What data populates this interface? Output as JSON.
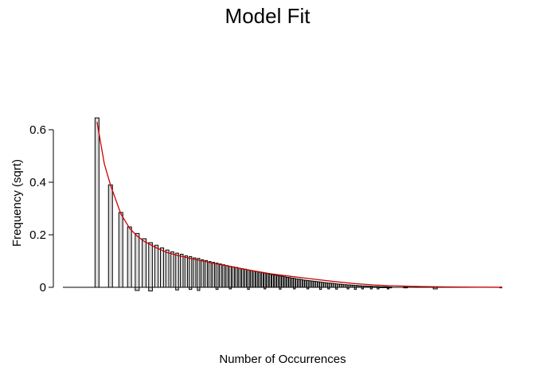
{
  "chart_data": {
    "type": "bar",
    "title": "Model Fit",
    "xlabel": "Number of Occurrences",
    "ylabel": "Frequency (sqrt)",
    "ylim": [
      0,
      0.65
    ],
    "yticks": [
      0,
      0.2,
      0.4,
      0.6
    ],
    "ytick_labels": [
      "0",
      "0.2",
      "0.4",
      "0.6"
    ],
    "xticks_shown": false,
    "grid": false,
    "x": [
      1,
      2,
      3,
      4,
      5,
      6,
      7,
      8,
      9,
      10,
      11,
      12,
      13,
      14,
      15,
      16,
      17,
      18,
      19,
      20,
      21,
      22,
      23,
      24,
      25,
      26,
      27,
      28,
      29,
      30,
      31,
      32,
      33,
      34,
      35,
      36,
      37,
      38,
      39,
      40,
      41,
      42,
      43,
      44,
      45,
      46,
      47,
      48,
      49,
      50,
      51,
      52,
      53,
      54,
      55,
      56,
      57,
      58,
      59,
      60,
      61,
      62,
      63,
      64,
      65,
      66,
      67,
      68,
      69,
      70,
      71,
      72,
      73,
      74,
      75,
      76,
      77,
      78,
      79,
      80,
      81,
      82,
      83,
      84,
      85,
      86,
      87,
      88,
      89,
      90,
      91,
      92,
      93,
      94,
      95,
      96,
      97,
      98,
      99,
      100,
      110,
      130,
      180
    ],
    "series": [
      {
        "kind": "bar",
        "values": [
          0.645,
          0.39,
          0.285,
          0.23,
          0.205,
          0.185,
          0.17,
          0.16,
          0.15,
          0.142,
          0.135,
          0.13,
          0.126,
          0.12,
          0.117,
          0.112,
          0.11,
          0.105,
          0.102,
          0.098,
          0.095,
          0.092,
          0.089,
          0.086,
          0.083,
          0.08,
          0.078,
          0.076,
          0.073,
          0.071,
          0.069,
          0.066,
          0.064,
          0.062,
          0.06,
          0.058,
          0.056,
          0.054,
          0.052,
          0.05,
          0.048,
          0.047,
          0.045,
          0.043,
          0.042,
          0.04,
          0.038,
          0.037,
          0.035,
          0.034,
          0.032,
          0.031,
          0.03,
          0.028,
          0.027,
          0.026,
          0.025,
          0.024,
          0.023,
          0.022,
          0.021,
          0.02,
          0.019,
          0.018,
          0.017,
          0.016,
          0.016,
          0.015,
          0.014,
          0.013,
          0.012,
          0.012,
          0.011,
          0.01,
          0.01,
          0.009,
          0.009,
          0.008,
          0.008,
          0.007,
          0.007,
          0.006,
          0.006,
          0.005,
          0.005,
          0.005,
          0.004,
          0.004,
          0.004,
          0.003,
          0.003,
          0.003,
          0.003,
          0.002,
          0.002,
          0.002,
          0.002,
          0.002,
          0.001,
          0.001,
          0.001,
          0.001,
          0.001
        ],
        "bottoms": [
          0.0,
          0.0,
          0.0,
          0.0,
          -0.012,
          0.0,
          -0.014,
          0.0,
          0.0,
          0.0,
          0.0,
          -0.01,
          0.0,
          0.0,
          -0.008,
          0.0,
          -0.012,
          0.0,
          0.0,
          0.0,
          0.0,
          -0.008,
          0.0,
          0.0,
          0.0,
          -0.006,
          0.0,
          0.0,
          0.0,
          0.0,
          0.0,
          -0.008,
          0.0,
          0.0,
          0.0,
          0.0,
          0.0,
          -0.006,
          0.0,
          0.0,
          0.0,
          0.0,
          0.0,
          -0.007,
          0.0,
          0.0,
          0.0,
          0.0,
          0.0,
          -0.006,
          0.0,
          0.0,
          0.0,
          0.0,
          0.0,
          -0.006,
          0.0,
          0.0,
          0.0,
          0.0,
          0.0,
          -0.008,
          0.0,
          0.0,
          0.0,
          -0.006,
          0.0,
          0.0,
          0.0,
          -0.007,
          0.0,
          0.0,
          0.0,
          0.0,
          0.0,
          -0.006,
          0.0,
          0.0,
          0.0,
          -0.008,
          0.0,
          0.0,
          0.0,
          -0.006,
          0.0,
          0.0,
          0.0,
          0.0,
          -0.006,
          0.0,
          0.0,
          0.0,
          -0.006,
          0.0,
          0.0,
          0.0,
          0.0,
          0.0,
          -0.006,
          0.0,
          0.0,
          -0.006,
          0.0
        ],
        "fill": "#d9d9d9",
        "stroke": "#000000"
      },
      {
        "kind": "line",
        "x": [
          1,
          1.5,
          2,
          3,
          4,
          5,
          6,
          8,
          10,
          12,
          15,
          20,
          25,
          30,
          40,
          50,
          60,
          70,
          80,
          90,
          100,
          120,
          140,
          160,
          180
        ],
        "values": [
          0.63,
          0.47,
          0.39,
          0.28,
          0.225,
          0.195,
          0.175,
          0.15,
          0.132,
          0.122,
          0.11,
          0.094,
          0.082,
          0.07,
          0.052,
          0.04,
          0.03,
          0.021,
          0.014,
          0.009,
          0.006,
          0.003,
          0.0015,
          0.0006,
          0.0002
        ],
        "color": "#cc0000"
      }
    ]
  }
}
